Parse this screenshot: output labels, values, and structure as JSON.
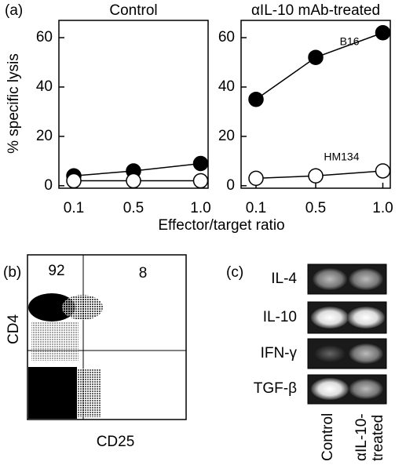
{
  "panel_a": {
    "label": "(a)",
    "y_label": "% specific lysis",
    "x_label": "Effector/target ratio"
  },
  "chart_data": [
    {
      "type": "line",
      "title": "Control",
      "categories": [
        "0.1",
        "0.5",
        "1.0"
      ],
      "ylim": [
        -1,
        67
      ],
      "yticks": [
        0,
        20,
        40,
        60
      ],
      "series": [
        {
          "color": "#000000",
          "marker": "filled",
          "values": [
            4,
            6,
            9
          ]
        },
        {
          "color": "#000000",
          "marker": "open",
          "values": [
            2,
            2,
            2
          ]
        }
      ]
    },
    {
      "type": "line",
      "title": "αIL-10 mAb-treated",
      "categories": [
        "0.1",
        "0.5",
        "1.0"
      ],
      "ylim": [
        -1,
        67
      ],
      "yticks": [
        0,
        20,
        40,
        60
      ],
      "series": [
        {
          "name": "B16",
          "color": "#000000",
          "marker": "filled",
          "values": [
            35,
            52,
            62
          ]
        },
        {
          "name": "HM134",
          "color": "#000000",
          "marker": "open",
          "values": [
            3,
            4,
            6
          ]
        }
      ]
    }
  ],
  "panel_b": {
    "label": "(b)",
    "quadrants": {
      "upper_left": "92",
      "upper_right": "8"
    },
    "y_label": "CD4",
    "x_label": "CD25"
  },
  "panel_c": {
    "label": "(c)",
    "rows": [
      "IL-4",
      "IL-10",
      "IFN-γ",
      "TGF-β"
    ],
    "columns": [
      "Control",
      "αIL-10-",
      "treated"
    ]
  }
}
